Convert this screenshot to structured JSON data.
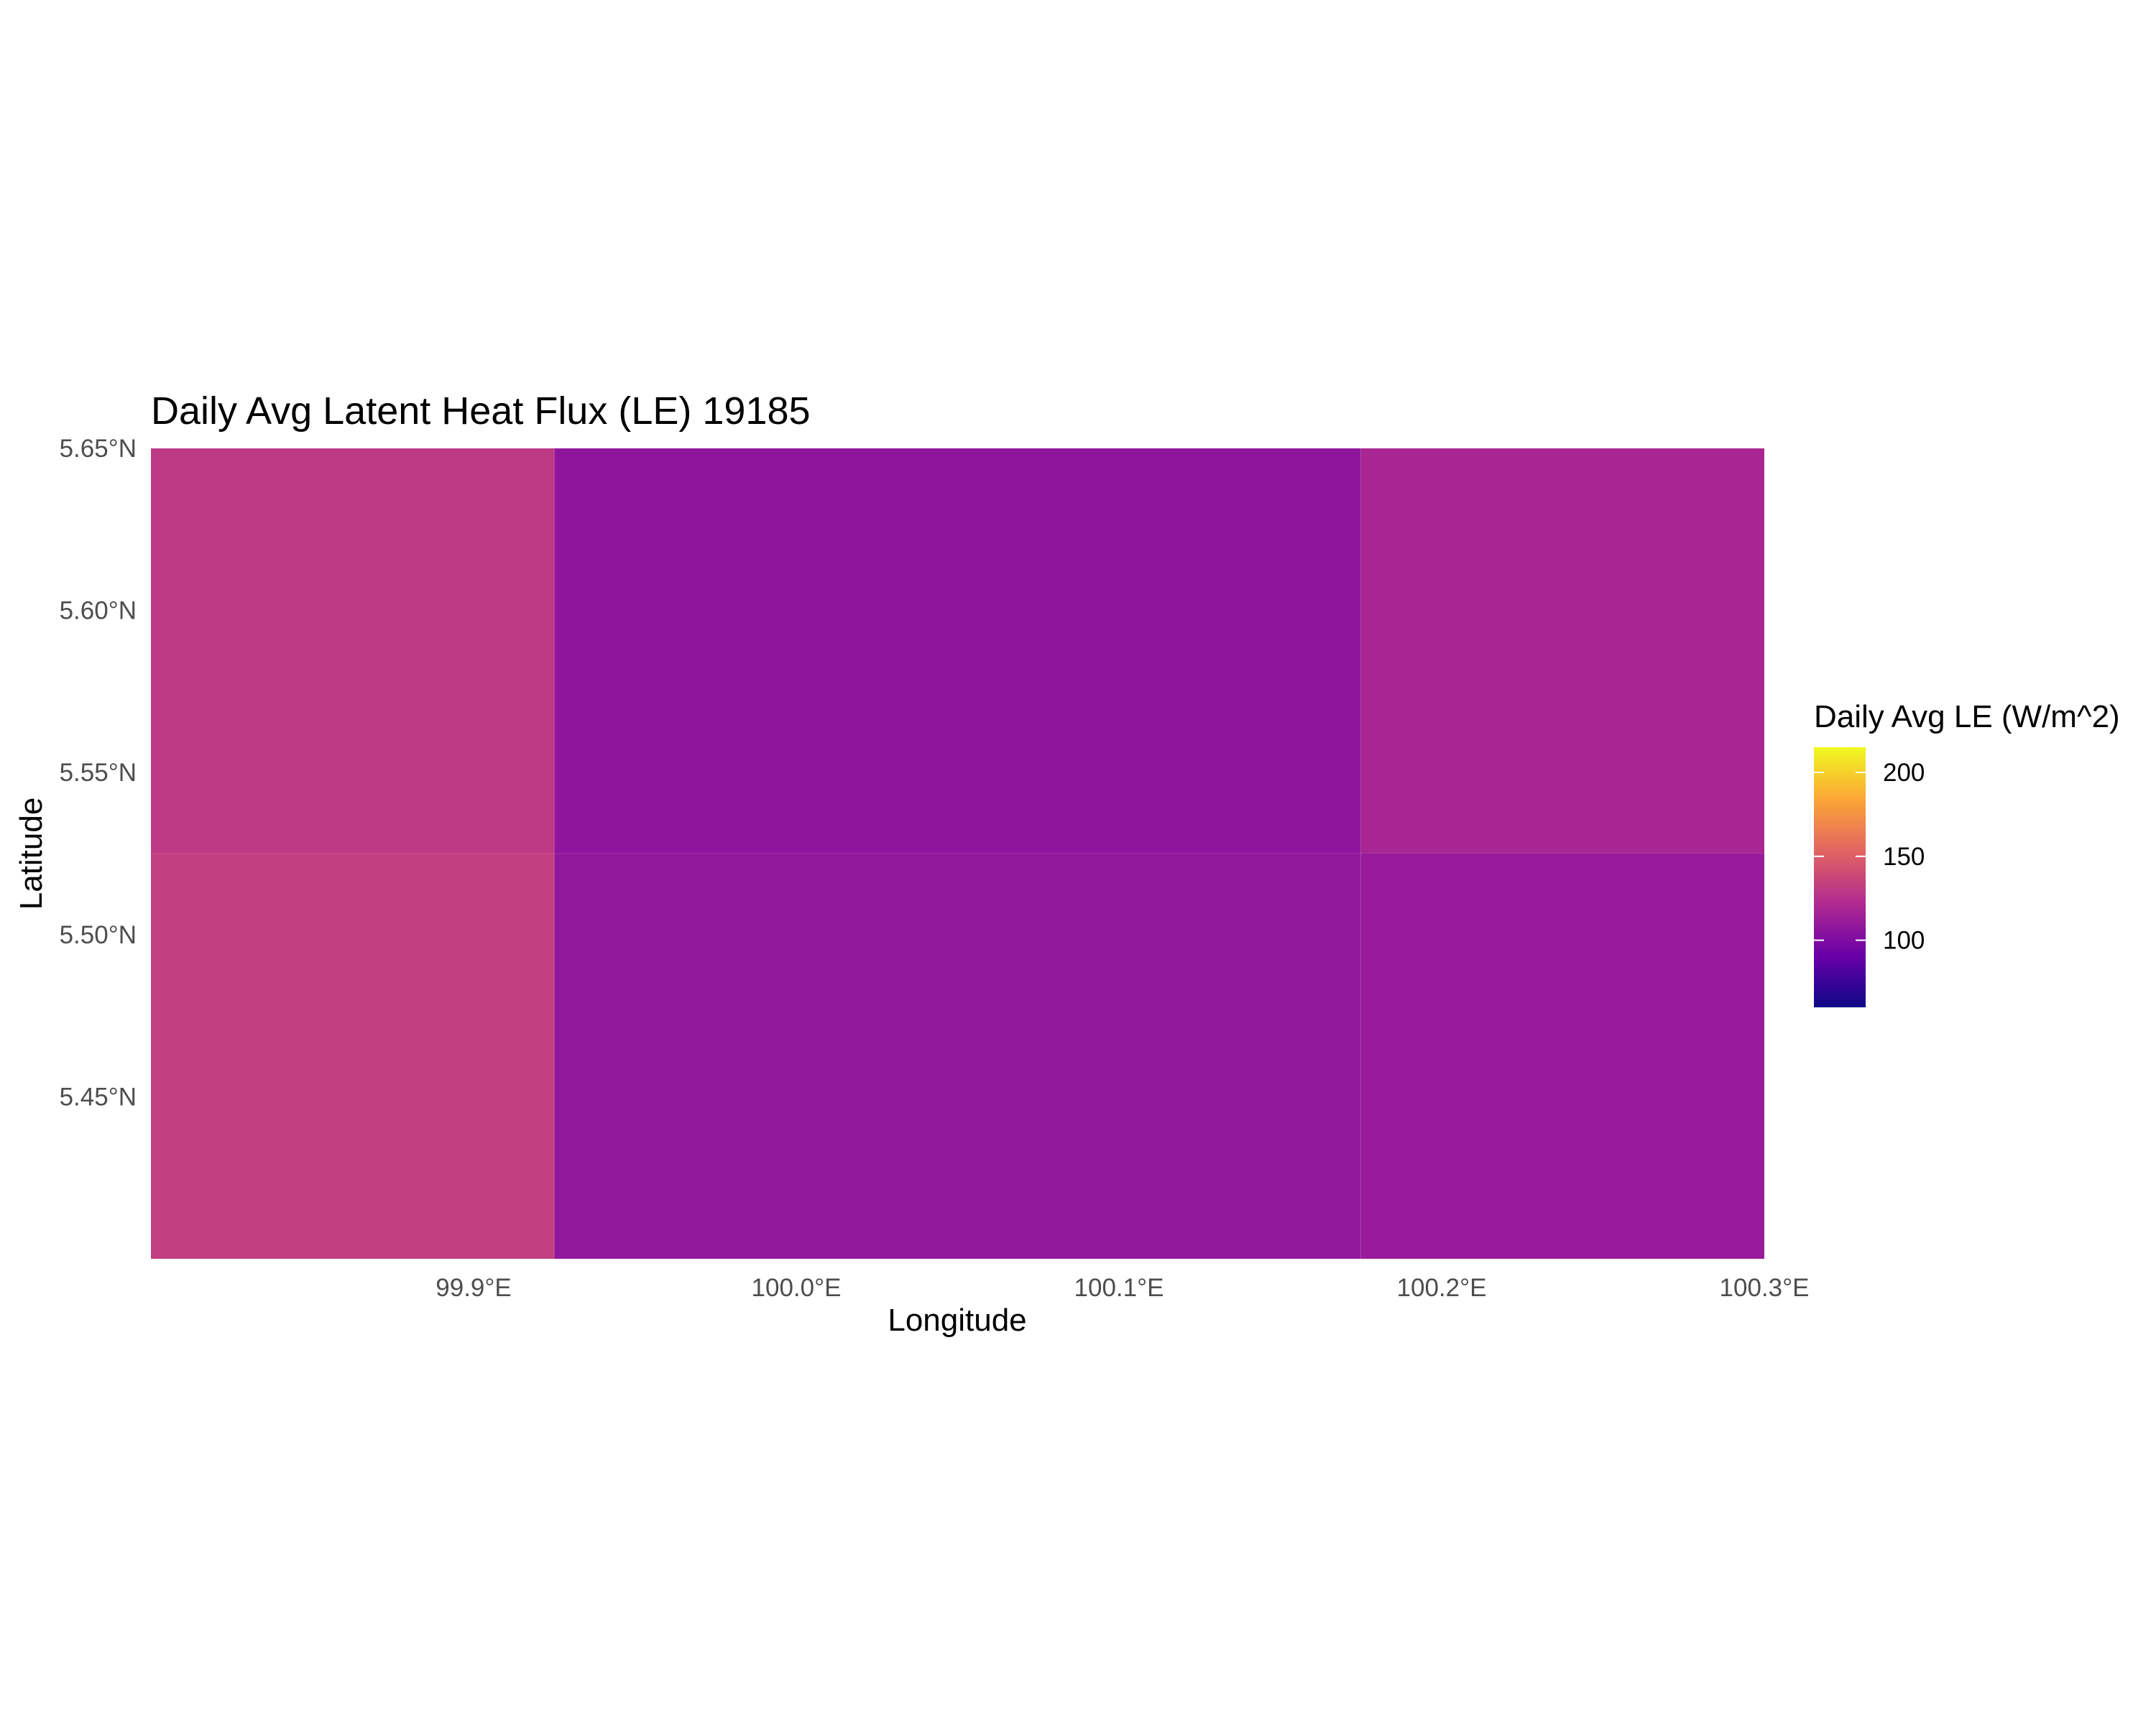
{
  "chart_data": {
    "type": "heatmap",
    "title": "Daily Avg Latent Heat Flux (LE) 19185",
    "xlabel": "Longitude",
    "ylabel": "Latitude",
    "x_ticks": [
      {
        "value": 99.9,
        "label": "99.9°E"
      },
      {
        "value": 100.0,
        "label": "100.0°E"
      },
      {
        "value": 100.1,
        "label": "100.1°E"
      },
      {
        "value": 100.2,
        "label": "100.2°E"
      },
      {
        "value": 100.3,
        "label": "100.3°E"
      }
    ],
    "y_ticks": [
      {
        "value": 5.45,
        "label": "5.45°N"
      },
      {
        "value": 5.5,
        "label": "5.50°N"
      },
      {
        "value": 5.55,
        "label": "5.55°N"
      },
      {
        "value": 5.6,
        "label": "5.60°N"
      },
      {
        "value": 5.65,
        "label": "5.65°N"
      }
    ],
    "xlim": [
      99.8,
      100.3
    ],
    "ylim": [
      5.4,
      5.65
    ],
    "grid": false,
    "legend": {
      "title": "Daily Avg LE (W/m^2)",
      "placement": "right",
      "palette": "plasma",
      "colors": [
        "#0d0887",
        "#6a00a8",
        "#b12a90",
        "#e16462",
        "#fca636",
        "#f0f921"
      ],
      "range": [
        60,
        215
      ],
      "ticks": [
        {
          "value": 100,
          "label": "100"
        },
        {
          "value": 150,
          "label": "150"
        },
        {
          "value": 200,
          "label": "200"
        }
      ]
    },
    "cells": [
      {
        "lon_min": 99.8,
        "lon_max": 99.925,
        "lat_min": 5.525,
        "lat_max": 5.65,
        "value": 130
      },
      {
        "lon_min": 99.925,
        "lon_max": 100.175,
        "lat_min": 5.525,
        "lat_max": 5.65,
        "value": 107
      },
      {
        "lon_min": 100.175,
        "lon_max": 100.3,
        "lat_min": 5.525,
        "lat_max": 5.65,
        "value": 118
      },
      {
        "lon_min": 99.8,
        "lon_max": 99.925,
        "lat_min": 5.4,
        "lat_max": 5.525,
        "value": 133
      },
      {
        "lon_min": 99.925,
        "lon_max": 100.175,
        "lat_min": 5.4,
        "lat_max": 5.525,
        "value": 108
      },
      {
        "lon_min": 100.175,
        "lon_max": 100.3,
        "lat_min": 5.4,
        "lat_max": 5.525,
        "value": 110
      }
    ]
  }
}
